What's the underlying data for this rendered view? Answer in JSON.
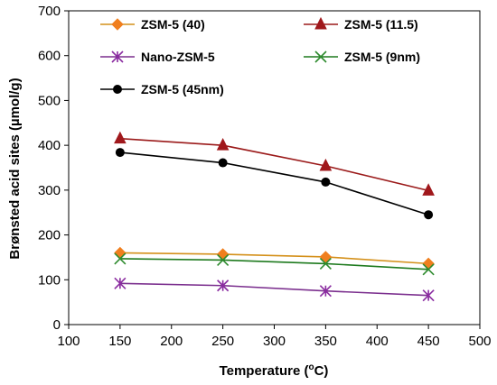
{
  "chart_data": {
    "type": "line",
    "title": "",
    "xlabel": "Temperature (",
    "xlabel_sup": "o",
    "xlabel_suffix": "C)",
    "ylabel": "Brønsted acid sites (µmol/g)",
    "xlim": [
      100,
      500
    ],
    "ylim": [
      0,
      700
    ],
    "xticks": [
      100,
      150,
      200,
      250,
      300,
      350,
      400,
      450,
      500
    ],
    "yticks": [
      0,
      100,
      200,
      300,
      400,
      500,
      600,
      700
    ],
    "grid": false,
    "legend_position": "top",
    "x": [
      150,
      250,
      350,
      450
    ],
    "series": [
      {
        "name": "ZSM-5 (40)",
        "values": [
          160,
          157,
          151,
          136
        ],
        "color": "#D4901A",
        "marker": "diamond",
        "marker_color": "#F07F1E"
      },
      {
        "name": "ZSM-5 (11.5)",
        "values": [
          415,
          400,
          354,
          299
        ],
        "color": "#9B1A1A",
        "marker": "triangle",
        "marker_color": "#A0181C"
      },
      {
        "name": "Nano-ZSM-5",
        "values": [
          92,
          87,
          75,
          65
        ],
        "color": "#7B2F8E",
        "marker": "star",
        "marker_color": "#8A2BA0"
      },
      {
        "name": "ZSM-5 (9nm)",
        "values": [
          147,
          144,
          136,
          123
        ],
        "color": "#1E7A1E",
        "marker": "x",
        "marker_color": "#2E8B2E"
      },
      {
        "name": "ZSM-5 (45nm)",
        "values": [
          384,
          361,
          318,
          245
        ],
        "color": "#000000",
        "marker": "circle",
        "marker_color": "#000000"
      }
    ]
  }
}
